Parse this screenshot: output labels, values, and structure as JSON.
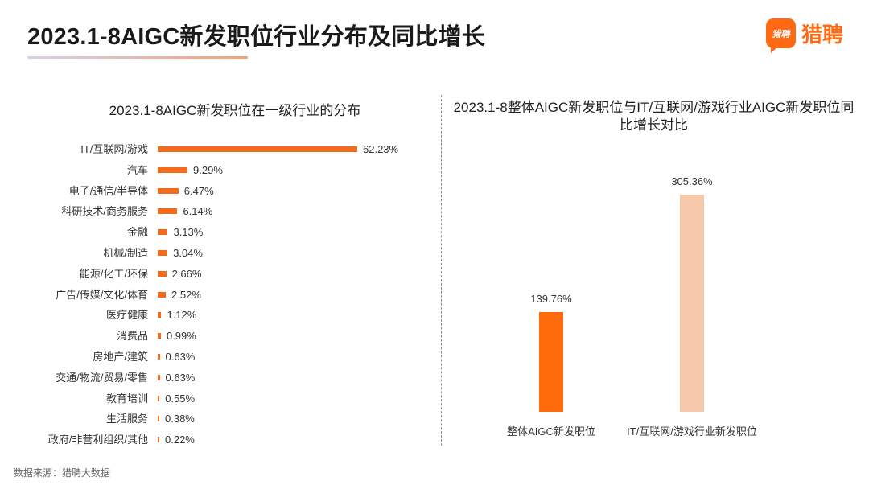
{
  "header": {
    "title": "2023.1-8AIGC新发职位行业分布及同比增长",
    "brand_badge": "猎聘",
    "brand_name": "猎聘"
  },
  "source": "数据来源：猎聘大数据",
  "colors": {
    "accent": "#f26a1b",
    "light_accent": "#f6c9ab"
  },
  "chart_data": [
    {
      "type": "bar",
      "orientation": "horizontal",
      "title": "2023.1-8AIGC新发职位在一级行业的分布",
      "categories": [
        "IT/互联网/游戏",
        "汽车",
        "电子/通信/半导体",
        "科研技术/商务服务",
        "金融",
        "机械/制造",
        "能源/化工/环保",
        "广告/传媒/文化/体育",
        "医疗健康",
        "消费品",
        "房地产/建筑",
        "交通/物流/贸易/零售",
        "教育培训",
        "生活服务",
        "政府/非营利组织/其他"
      ],
      "values": [
        62.23,
        9.29,
        6.47,
        6.14,
        3.13,
        3.04,
        2.66,
        2.52,
        1.12,
        0.99,
        0.63,
        0.63,
        0.55,
        0.38,
        0.22
      ],
      "value_labels": [
        "62.23%",
        "9.29%",
        "6.47%",
        "6.14%",
        "3.13%",
        "3.04%",
        "2.66%",
        "2.52%",
        "1.12%",
        "0.99%",
        "0.63%",
        "0.63%",
        "0.55%",
        "0.38%",
        "0.22%"
      ],
      "unit": "%",
      "xlim": [
        0,
        62.23
      ]
    },
    {
      "type": "bar",
      "orientation": "vertical",
      "title": "2023.1-8整体AIGC新发职位与IT/互联网/游戏行业AIGC新发职位同比增长对比",
      "categories": [
        "整体AIGC新发职位",
        "IT/互联网/游戏行业新发职位"
      ],
      "values": [
        139.76,
        305.36
      ],
      "value_labels": [
        "139.76%",
        "305.36%"
      ],
      "series_colors": [
        "#ff6a0a",
        "#f6c9ab"
      ],
      "unit": "%",
      "ylim": [
        0,
        305.36
      ]
    }
  ]
}
